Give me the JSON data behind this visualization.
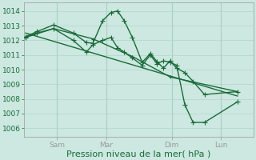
{
  "background_color": "#cce8e0",
  "grid_color": "#aacfc5",
  "line_color": "#1a6b3a",
  "marker_color": "#1a6b3a",
  "ylabel_ticks": [
    1006,
    1007,
    1008,
    1009,
    1010,
    1011,
    1012,
    1013,
    1014
  ],
  "ylim": [
    1005.4,
    1014.6
  ],
  "xlabel": "Pression niveau de la mer( hPa )",
  "xlabel_fontsize": 8,
  "xlim": [
    0.0,
    7.0
  ],
  "xtick_positions": [
    1.0,
    2.5,
    4.5,
    6.0
  ],
  "xtick_labels": [
    "Sam",
    "Mar",
    "Dim",
    "Lun"
  ],
  "lines": [
    {
      "x": [
        0.05,
        0.4,
        0.9,
        1.5,
        1.9,
        2.1,
        2.4,
        2.65,
        2.85,
        3.05,
        3.3,
        3.6,
        3.85,
        4.05,
        4.25,
        4.45,
        4.65,
        4.9,
        5.15,
        5.5,
        6.5
      ],
      "y": [
        1012.25,
        1012.6,
        1013.05,
        1012.5,
        1011.85,
        1011.8,
        1013.35,
        1013.9,
        1014.0,
        1013.35,
        1012.2,
        1010.5,
        1011.1,
        1010.55,
        1010.1,
        1010.6,
        1010.1,
        1009.8,
        1009.2,
        1008.3,
        1008.5
      ],
      "marker": "+",
      "lw": 1.0,
      "ms": 4
    },
    {
      "x": [
        0.05,
        0.4,
        0.9,
        1.5,
        1.9,
        2.1,
        2.4,
        2.65,
        2.85,
        3.05,
        3.3,
        3.6,
        3.85,
        4.05,
        4.25,
        4.45,
        4.65,
        4.9,
        5.15,
        5.5,
        6.5
      ],
      "y": [
        1012.2,
        1012.5,
        1012.8,
        1012.0,
        1011.2,
        1011.7,
        1012.0,
        1012.2,
        1011.5,
        1011.2,
        1010.8,
        1010.3,
        1011.0,
        1010.4,
        1010.6,
        1010.5,
        1010.3,
        1007.6,
        1006.4,
        1006.4,
        1007.8
      ],
      "marker": "+",
      "lw": 1.0,
      "ms": 4
    },
    {
      "x": [
        0.05,
        0.9,
        2.1,
        3.3,
        4.45,
        6.5
      ],
      "y": [
        1012.2,
        1012.8,
        1012.1,
        1010.9,
        1009.5,
        1008.5
      ],
      "marker": "+",
      "lw": 1.0,
      "ms": 3
    },
    {
      "x": [
        0.05,
        6.5
      ],
      "y": [
        1012.5,
        1008.2
      ],
      "marker": null,
      "lw": 1.0,
      "ms": 0
    }
  ],
  "tick_fontsize": 6.5,
  "tick_color": "#1a6b3a",
  "axis_color": "#999999",
  "spine_linewidth": 0.5
}
